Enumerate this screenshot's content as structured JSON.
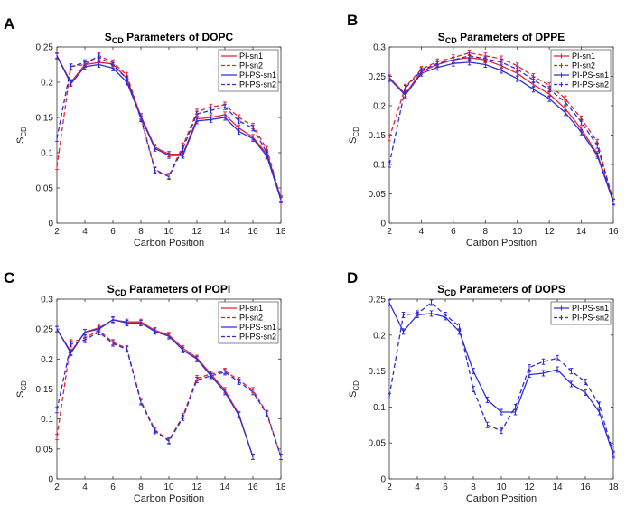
{
  "colors": {
    "red": "#e8222b",
    "blue": "#2e2ed8"
  },
  "chart_data": [
    {
      "type": "line",
      "panel": "A",
      "title_main": "S",
      "title_sub": "CD",
      "title_rest": " Parameters of DOPC",
      "xlabel": "Carbon Position",
      "ylabel_main": "S",
      "ylabel_sub": "CD",
      "xlim": [
        2,
        18
      ],
      "ylim": [
        0,
        0.25
      ],
      "xticks": [
        2,
        4,
        6,
        8,
        10,
        12,
        14,
        16,
        18
      ],
      "yticks": [
        0,
        0.05,
        0.1,
        0.15,
        0.2,
        0.25
      ],
      "ytick_labels": [
        "0",
        "0.05",
        "0.1",
        "0.15",
        "0.2",
        "0.25"
      ],
      "legend_position": "top-right",
      "series": [
        {
          "name": "PI-sn1",
          "color": "red",
          "dash": false,
          "x": [
            2,
            3,
            4,
            5,
            6,
            7,
            8,
            9,
            10,
            11,
            12,
            13,
            14,
            15,
            16,
            17,
            18
          ],
          "y": [
            0.238,
            0.2,
            0.225,
            0.228,
            0.226,
            0.205,
            0.152,
            0.108,
            0.098,
            0.098,
            0.148,
            0.15,
            0.154,
            0.135,
            0.122,
            0.098,
            0.035
          ]
        },
        {
          "name": "PI-sn2",
          "color": "red",
          "dash": true,
          "x": [
            2,
            3,
            4,
            5,
            6,
            7,
            8,
            9,
            10,
            11,
            12,
            13,
            14,
            15,
            16,
            17,
            18
          ],
          "y": [
            0.08,
            0.222,
            0.225,
            0.238,
            0.228,
            0.21,
            0.15,
            0.076,
            0.067,
            0.11,
            0.158,
            0.165,
            0.168,
            0.15,
            0.138,
            0.105,
            0.035
          ]
        },
        {
          "name": "PI-PS-sn1",
          "color": "blue",
          "dash": false,
          "x": [
            2,
            3,
            4,
            5,
            6,
            7,
            8,
            9,
            10,
            11,
            12,
            13,
            14,
            15,
            16,
            17,
            18
          ],
          "y": [
            0.237,
            0.198,
            0.222,
            0.225,
            0.22,
            0.2,
            0.15,
            0.106,
            0.096,
            0.096,
            0.145,
            0.147,
            0.15,
            0.13,
            0.12,
            0.095,
            0.033
          ]
        },
        {
          "name": "PI-PS-sn2",
          "color": "blue",
          "dash": true,
          "x": [
            2,
            3,
            4,
            5,
            6,
            7,
            8,
            9,
            10,
            11,
            12,
            13,
            14,
            15,
            16,
            17,
            18
          ],
          "y": [
            0.12,
            0.222,
            0.228,
            0.236,
            0.224,
            0.205,
            0.148,
            0.075,
            0.066,
            0.106,
            0.155,
            0.16,
            0.165,
            0.145,
            0.135,
            0.1,
            0.033
          ]
        }
      ]
    },
    {
      "type": "line",
      "panel": "B",
      "title_main": "S",
      "title_sub": "CD",
      "title_rest": " Parameters of DPPE",
      "xlabel": "Carbon Position",
      "ylabel_main": "S",
      "ylabel_sub": "CD",
      "xlim": [
        2,
        16
      ],
      "ylim": [
        0,
        0.3
      ],
      "xticks": [
        2,
        4,
        6,
        8,
        10,
        12,
        14,
        16
      ],
      "yticks": [
        0,
        0.05,
        0.1,
        0.15,
        0.2,
        0.25,
        0.3
      ],
      "ytick_labels": [
        "0",
        "0.05",
        "0.1",
        "0.15",
        "0.2",
        "0.25",
        "0.3"
      ],
      "legend_position": "top-right",
      "series": [
        {
          "name": "PI-sn1",
          "color": "red",
          "dash": false,
          "x": [
            2,
            3,
            4,
            5,
            6,
            7,
            8,
            9,
            10,
            11,
            12,
            13,
            14,
            15,
            16
          ],
          "y": [
            0.248,
            0.22,
            0.258,
            0.27,
            0.278,
            0.282,
            0.278,
            0.268,
            0.255,
            0.236,
            0.22,
            0.195,
            0.16,
            0.118,
            0.037
          ]
        },
        {
          "name": "PI-sn2",
          "color": "red",
          "dash": true,
          "x": [
            2,
            3,
            4,
            5,
            6,
            7,
            8,
            9,
            10,
            11,
            12,
            13,
            14,
            15,
            16
          ],
          "y": [
            0.145,
            0.232,
            0.262,
            0.275,
            0.282,
            0.29,
            0.285,
            0.28,
            0.268,
            0.25,
            0.235,
            0.212,
            0.178,
            0.138,
            0.037
          ]
        },
        {
          "name": "PI-PS-sn1",
          "color": "blue",
          "dash": false,
          "x": [
            2,
            3,
            4,
            5,
            6,
            7,
            8,
            9,
            10,
            11,
            12,
            13,
            14,
            15,
            16
          ],
          "y": [
            0.246,
            0.218,
            0.255,
            0.265,
            0.272,
            0.274,
            0.27,
            0.26,
            0.246,
            0.228,
            0.212,
            0.188,
            0.155,
            0.115,
            0.036
          ]
        },
        {
          "name": "PI-PS-sn2",
          "color": "blue",
          "dash": true,
          "x": [
            2,
            3,
            4,
            5,
            6,
            7,
            8,
            9,
            10,
            11,
            12,
            13,
            14,
            15,
            16
          ],
          "y": [
            0.1,
            0.23,
            0.26,
            0.272,
            0.278,
            0.285,
            0.28,
            0.274,
            0.262,
            0.244,
            0.228,
            0.206,
            0.172,
            0.132,
            0.036
          ]
        }
      ]
    },
    {
      "type": "line",
      "panel": "C",
      "title_main": "S",
      "title_sub": "CD",
      "title_rest": " Parameters of POPI",
      "xlabel": "Carbon Position",
      "ylabel_main": "S",
      "ylabel_sub": "CD",
      "xlim": [
        2,
        18
      ],
      "ylim": [
        0,
        0.3
      ],
      "xticks": [
        2,
        4,
        6,
        8,
        10,
        12,
        14,
        16,
        18
      ],
      "yticks": [
        0,
        0.05,
        0.1,
        0.15,
        0.2,
        0.25,
        0.3
      ],
      "ytick_labels": [
        "0",
        "0.05",
        "0.1",
        "0.15",
        "0.2",
        "0.25",
        "0.3"
      ],
      "legend_position": "top-right",
      "series": [
        {
          "name": "PI-sn1",
          "color": "red",
          "dash": false,
          "x": [
            2,
            3,
            4,
            5,
            6,
            7,
            8,
            9,
            10,
            11,
            12,
            13,
            14,
            15,
            16
          ],
          "y": [
            0.25,
            0.212,
            0.245,
            0.252,
            0.265,
            0.262,
            0.262,
            0.248,
            0.24,
            0.218,
            0.202,
            0.175,
            0.148,
            0.108,
            0.037
          ]
        },
        {
          "name": "PI-sn2",
          "color": "red",
          "dash": true,
          "x": [
            2,
            3,
            4,
            5,
            6,
            7,
            8,
            9,
            10,
            11,
            12,
            13,
            14,
            15,
            16,
            17,
            18
          ],
          "y": [
            0.07,
            0.228,
            0.235,
            0.248,
            0.228,
            0.218,
            0.13,
            0.082,
            0.064,
            0.105,
            0.168,
            0.175,
            0.18,
            0.165,
            0.148,
            0.11,
            0.037
          ]
        },
        {
          "name": "PI-PS-sn1",
          "color": "blue",
          "dash": false,
          "x": [
            2,
            3,
            4,
            5,
            6,
            7,
            8,
            9,
            10,
            11,
            12,
            13,
            14,
            15,
            16
          ],
          "y": [
            0.25,
            0.21,
            0.245,
            0.25,
            0.266,
            0.26,
            0.26,
            0.246,
            0.238,
            0.215,
            0.2,
            0.172,
            0.145,
            0.106,
            0.037
          ]
        },
        {
          "name": "PI-PS-sn2",
          "color": "blue",
          "dash": true,
          "x": [
            2,
            3,
            4,
            5,
            6,
            7,
            8,
            9,
            10,
            11,
            12,
            13,
            14,
            15,
            16,
            17,
            18
          ],
          "y": [
            0.115,
            0.225,
            0.232,
            0.245,
            0.226,
            0.216,
            0.128,
            0.08,
            0.063,
            0.102,
            0.165,
            0.172,
            0.178,
            0.162,
            0.145,
            0.108,
            0.037
          ]
        }
      ]
    },
    {
      "type": "line",
      "panel": "D",
      "title_main": "S",
      "title_sub": "CD",
      "title_rest": " Parameters of DOPS",
      "xlabel": "Carbon Position",
      "ylabel_main": "S",
      "ylabel_sub": "CD",
      "xlim": [
        2,
        18
      ],
      "ylim": [
        0,
        0.25
      ],
      "xticks": [
        2,
        4,
        6,
        8,
        10,
        12,
        14,
        16,
        18
      ],
      "yticks": [
        0,
        0.05,
        0.1,
        0.15,
        0.2,
        0.25
      ],
      "ytick_labels": [
        "0",
        "0.05",
        "0.1",
        "0.15",
        "0.2",
        "0.25"
      ],
      "legend_position": "top-right",
      "series": [
        {
          "name": "PI-PS-sn1",
          "color": "blue",
          "dash": false,
          "x": [
            2,
            3,
            4,
            5,
            6,
            7,
            8,
            9,
            10,
            11,
            12,
            13,
            14,
            15,
            16,
            17,
            18
          ],
          "y": [
            0.245,
            0.205,
            0.228,
            0.23,
            0.225,
            0.205,
            0.15,
            0.11,
            0.093,
            0.093,
            0.145,
            0.147,
            0.152,
            0.132,
            0.12,
            0.093,
            0.033
          ]
        },
        {
          "name": "PI-PS-sn2",
          "color": "blue",
          "dash": true,
          "x": [
            2,
            3,
            4,
            5,
            6,
            7,
            8,
            9,
            10,
            11,
            12,
            13,
            14,
            15,
            16,
            17,
            18
          ],
          "y": [
            0.115,
            0.228,
            0.23,
            0.245,
            0.228,
            0.212,
            0.125,
            0.075,
            0.067,
            0.1,
            0.155,
            0.163,
            0.168,
            0.15,
            0.135,
            0.103,
            0.035
          ]
        }
      ]
    }
  ]
}
